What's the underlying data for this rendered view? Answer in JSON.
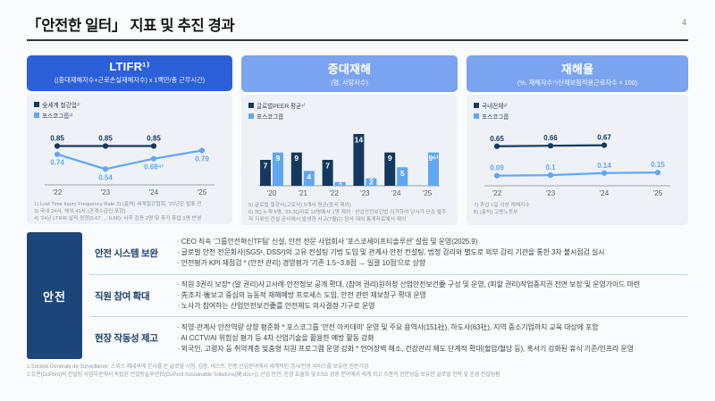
{
  "page": {
    "title": "「안전한 일터」 지표 및 추진 경과",
    "page_number": "4"
  },
  "colors": {
    "header_primary": "#2c60d8",
    "header_secondary": "#7aa4f0",
    "card_body_bg": "#eef2f7",
    "series_dark_navy": "#14395e",
    "series_light_blue": "#61a6f3",
    "axis_gray": "#9aa2ab",
    "table_category_bg": "#1c4679"
  },
  "chart_data": [
    {
      "type": "line",
      "title": "LTIFR¹⁾",
      "subtitle": "((중대재해자수+근로손실재해자수) x 1백만/총 근무시간)",
      "categories": [
        "'22",
        "'23",
        "'24",
        "'25"
      ],
      "ylim": [
        0.4,
        1.0
      ],
      "legend_position": "top-left",
      "grid": false,
      "series": [
        {
          "name": "全세계 철강업²⁾",
          "color": "#14395e",
          "label_side": "above",
          "values": [
            0.85,
            0.85,
            0.85,
            null
          ],
          "labels": [
            "0.85",
            "0.85",
            "0.85",
            null
          ]
        },
        {
          "name": "포스코그룹³⁾",
          "color": "#61a6f3",
          "label_side": "below",
          "values": [
            0.74,
            0.54,
            0.68,
            0.79
          ],
          "labels": [
            "0.74",
            "0.54",
            "0.68⁴⁾",
            "0.79"
          ]
        }
      ],
      "footnotes": [
        "1) Lost Time Injury Frequency Rate      2) (출처) 세계철강협회, '25년은 발표 전",
        "3) 국내 24사, 해외 41사 (관계수급인 포함)",
        "4) '24년 LTIFR 실적 정정(0.67 → 0.68): 사후 검증 2명 및 추가 휴업 1명 반영"
      ]
    },
    {
      "type": "bar",
      "title": "중대재해",
      "subtitle": "(명, 사망자수)",
      "categories": [
        "'20",
        "'21",
        "'22",
        "'23",
        "'24",
        "'25"
      ],
      "ylim": [
        0,
        14
      ],
      "legend_position": "top-left",
      "grid": false,
      "series": [
        {
          "name": "글로벌PEER 평균⁵⁾",
          "color": "#14395e",
          "values": [
            7,
            9,
            7,
            14,
            9,
            null
          ],
          "labels": [
            "7",
            "9",
            "7",
            "14",
            "9",
            null
          ]
        },
        {
          "name": "포스코그룹",
          "color": "#61a6f3",
          "values": [
            9,
            4,
            1,
            2,
            5,
            9
          ],
          "labels": [
            "9",
            "4",
            "1",
            "2",
            "5",
            "9⁶⁾"
          ]
        }
      ],
      "footnotes": [
        "5) 글로벌 철강사(고로사) 5개사 평균(중국 제외)",
        "6) 3Q 누계 9명, '25.3Q자료 10명에서 1명 제외 : 산업안전보건법 의거하여 당사가 단순 발주자 지위인 건설 공사에서 발생한 사고(7월)는 당사 대외 통계자료에서 제외"
      ]
    },
    {
      "type": "line",
      "title": "재해율",
      "subtitle": "(%, 재해자수⁷⁾/산재보험적용근로자수 × 100)",
      "categories": [
        "'22",
        "'23",
        "'24",
        "'25"
      ],
      "ylim": [
        0,
        0.85
      ],
      "legend_position": "top-left",
      "grid": false,
      "series": [
        {
          "name": "국내전체⁸⁾",
          "color": "#14395e",
          "label_side": "above",
          "values": [
            0.65,
            0.66,
            0.67,
            null
          ],
          "labels": [
            "0.65",
            "0.66",
            "0.67",
            null
          ]
        },
        {
          "name": "포스코그룹",
          "color": "#61a6f3",
          "label_side": "above",
          "values": [
            0.09,
            0.1,
            0.14,
            0.15
          ],
          "labels": [
            "0.09",
            "0.1",
            "0.14",
            "0.15"
          ]
        }
      ],
      "footnotes": [
        "7) 휴업 1일 이상 재해자수",
        "8) (출처) 고용노동부"
      ]
    }
  ],
  "table": {
    "category": "안전",
    "rows": [
      {
        "title": "안전 시스템 보완",
        "bullets": [
          "CEO 직속 '그룹안전혁신TF팀' 신설, 안전 전문 사업회사 '포스코세이프티솔루션' 설립 및 운영(2025.9)",
          "글로벌 안전 전문회사(SGS¹, DSS²)의 고유 컨설팅 기법 도입 및 관계사 안전 컨설팅, 법정 감리와 별도로 외부 감리 기관을 통한 3자 불시점검 실시",
          "안전평가 KPI 재점검 * (안전 관리) 경영평가 '기존 1.5~3.8점 → 일괄 10점'으로 상향"
        ]
      },
      {
        "title": "직원 참여 확대",
        "bullets": [
          "직원 3권리 보장* (알 권리)사고사례·안전정보 공개 확대, (참여 권리)원하청 산업안전보건委 구성 및 운영, (피할 권리)작업중지권 전면 보장 및 운영가이드 마련",
          "先조치·後보고 중심의 능동적 재해예방 프로세스 도입, 안전 관련 제보창구 확대 운영",
          "노사가 참여하는 산업안전보건委를 안전제도 의사결정 기구로 운영"
        ]
      },
      {
        "title": "현장 작동성 제고",
        "bullets": [
          "직영·관계사 안전역량 상향 평준화 * 포스코그룹 '안전 아카데미' 운영 및 주요 용역사(151社), 하도사(63社), 지역 중소기업까지 교육 대상에 포함",
          "AI CCTV/AI 위험성 평가 등 4차 산업기술을 활용한 예방 활동 강화",
          "외국인, 고령자 등 취약계층 맞춤형 지원 프로그램 운영 강화 * 언어장벽 해소, 건강관리 제도 단계적 확대(혈압/혈당 등), 혹서기 강화된 휴식 기준/인프라 운영"
        ]
      }
    ],
    "footnotes": [
      "1.Société Générale de Surveillance: 스위스 제네바에 본사를 둔 글로벌 시험, 검증, 테스트, 인증 산업분야에서 세계적인 검사/인증 서비스를 보유한 전문기업",
      "2.듀폰(DuPont)의 컨설팅 사업부문에서 독립한 컨설팅솔루션社(DuPont Sustainable Solutions(現 dss+)), 산업 안전, 운영 효율화 및 ESG 경영 분야에서 세계 최고 수준의 전문성을 보유한 글로벌 전략 및 운영 컨설팅펌"
    ]
  }
}
